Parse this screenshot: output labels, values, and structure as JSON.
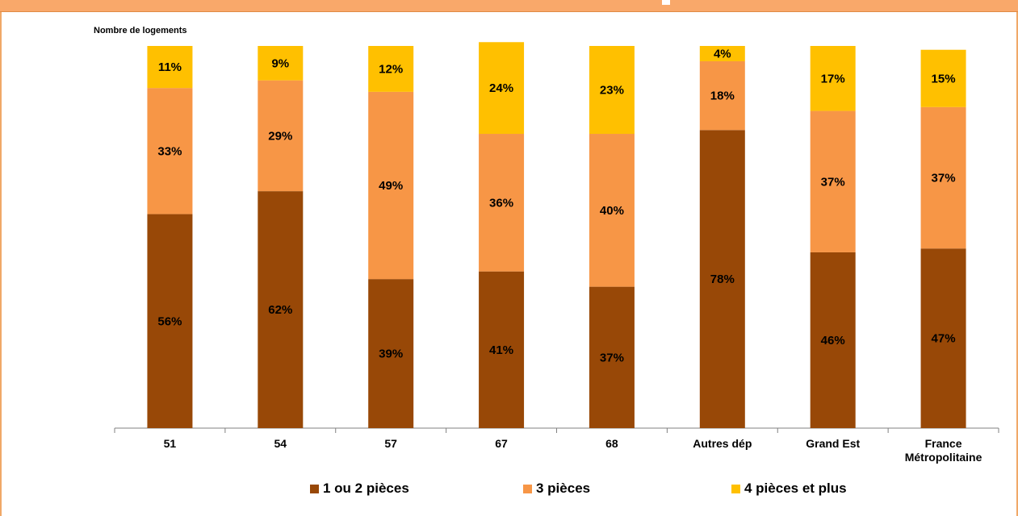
{
  "chart_data": {
    "type": "bar",
    "stacked": true,
    "title": "",
    "ylabel": "Nombre de logements",
    "xlabel": "",
    "ylim": [
      0,
      100
    ],
    "categories": [
      "51",
      "54",
      "57",
      "67",
      "68",
      "Autres dép",
      "Grand Est",
      "France Métropolitaine"
    ],
    "series": [
      {
        "name": "1 ou 2 pièces",
        "color": "#984807",
        "values": [
          56,
          62,
          39,
          41,
          37,
          78,
          46,
          47
        ]
      },
      {
        "name": "3 pièces",
        "color": "#f79646",
        "values": [
          33,
          29,
          49,
          36,
          40,
          18,
          37,
          37
        ]
      },
      {
        "name": "4 pièces et plus",
        "color": "#ffc000",
        "values": [
          11,
          9,
          12,
          24,
          23,
          4,
          17,
          15
        ]
      }
    ],
    "labels": [
      [
        "56%",
        "62%",
        "39%",
        "41%",
        "37%",
        "78%",
        "46%",
        "47%"
      ],
      [
        "33%",
        "29%",
        "49%",
        "36%",
        "40%",
        "18%",
        "37%",
        "37%"
      ],
      [
        "11%",
        "9%",
        "12%",
        "24%",
        "23%",
        "4%",
        "17%",
        "15%"
      ]
    ],
    "legend_position": "bottom",
    "grid": false
  }
}
